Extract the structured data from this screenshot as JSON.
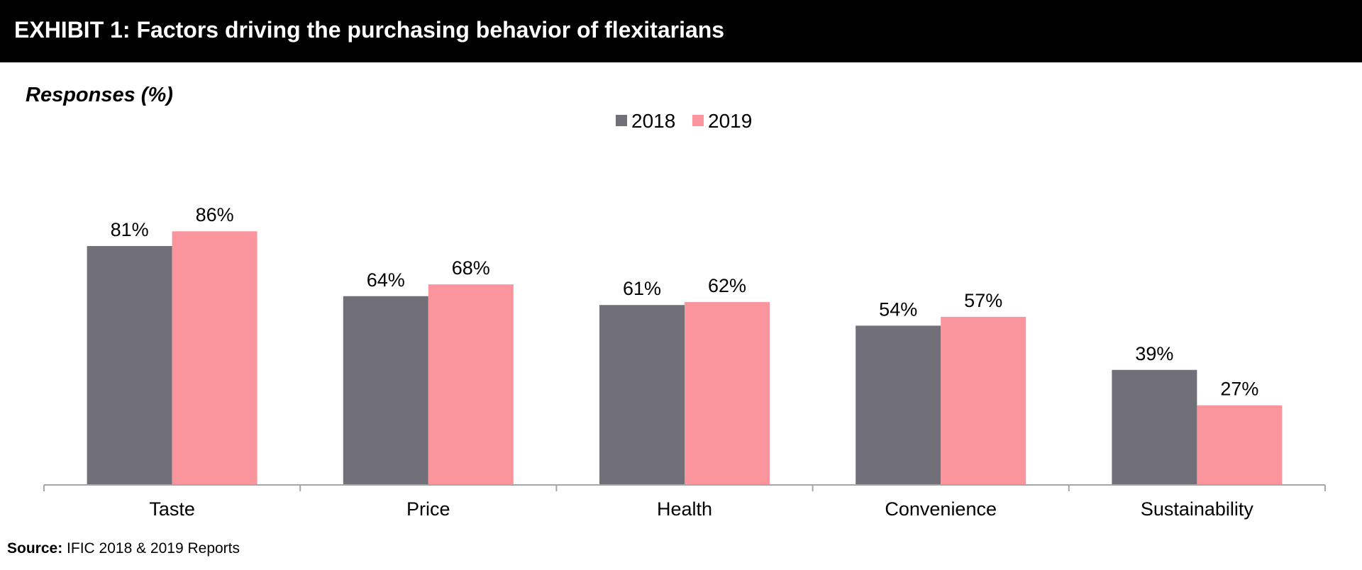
{
  "header": {
    "title": "EXHIBIT 1: Factors driving the purchasing behavior of flexitarians"
  },
  "source": {
    "label": "Source:",
    "text": "IFIC 2018 & 2019 Reports"
  },
  "colors": {
    "header_bg": "#000000",
    "series_2018": "#717079",
    "series_2019": "#fa959e",
    "axis": "#a6a6a6"
  },
  "chart_data": {
    "type": "bar",
    "ylabel": "Responses (%)",
    "categories": [
      "Taste",
      "Price",
      "Health",
      "Convenience",
      "Sustainability"
    ],
    "series": [
      {
        "name": "2018",
        "values": [
          81,
          64,
          61,
          54,
          39
        ],
        "color": "#717079"
      },
      {
        "name": "2019",
        "values": [
          86,
          68,
          62,
          57,
          27
        ],
        "color": "#fa959e"
      }
    ],
    "data_label_suffix": "%",
    "ylim": [
      0,
      100
    ],
    "legend": "top-center",
    "grid": false
  }
}
